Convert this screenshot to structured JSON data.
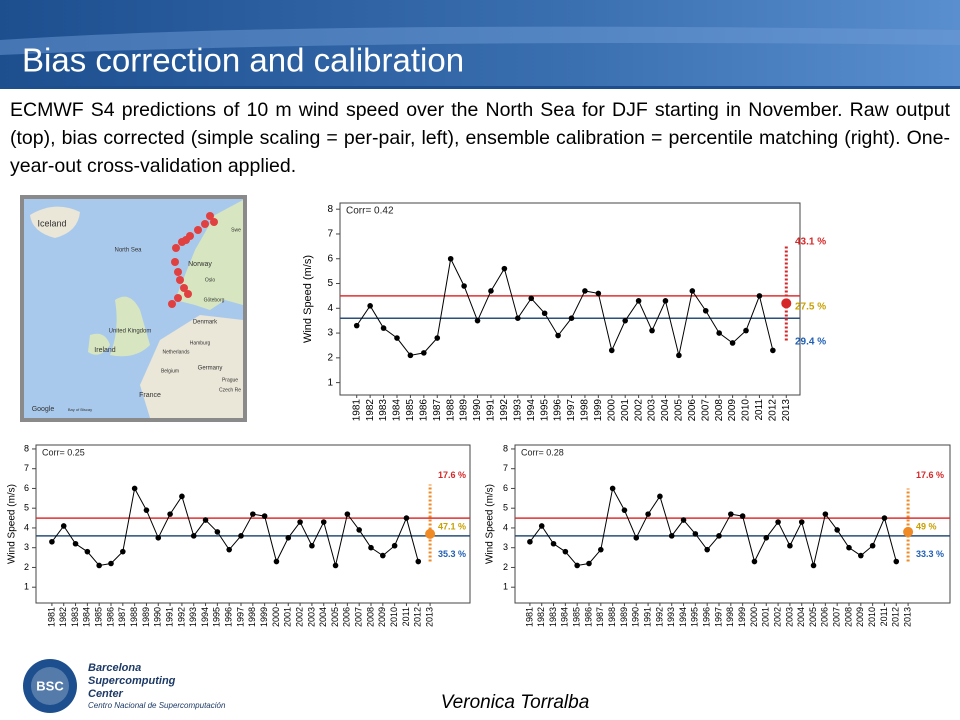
{
  "header": {
    "title": "Bias correction and calibration"
  },
  "description": "ECMWF S4 predictions of 10 m wind speed over the North Sea for DJF starting in November. Raw output (top), bias corrected (simple scaling = per-pair, left), ensemble calibration = percentile matching (right). One-year-out cross-validation applied.",
  "map": {
    "labels": [
      "Iceland",
      "North Sea",
      "Norway",
      "Oslo",
      "Swe",
      "Göteborg",
      "Denmark",
      "United Kingdom",
      "Ireland",
      "Netherlands",
      "Hamburg",
      "Belgium",
      "Germany",
      "France",
      "Prague",
      "Czech Re",
      "Google",
      "Bay of Biscay"
    ]
  },
  "chart_data": [
    {
      "type": "line",
      "corr_label": "Corr= 0.42",
      "y_label": "Wind Speed (m/s)",
      "categories": [
        "1981",
        "1982",
        "1983",
        "1984",
        "1985",
        "1986",
        "1987",
        "1988",
        "1989",
        "1990",
        "1991",
        "1992",
        "1993",
        "1994",
        "1995",
        "1996",
        "1997",
        "1998",
        "1999",
        "2000",
        "2001",
        "2002",
        "2003",
        "2004",
        "2005",
        "2006",
        "2007",
        "2008",
        "2009",
        "2010",
        "2011",
        "2012",
        "2013"
      ],
      "values": [
        3.3,
        4.1,
        3.2,
        2.8,
        2.1,
        2.2,
        2.8,
        6.0,
        4.9,
        3.5,
        4.7,
        5.6,
        3.6,
        4.4,
        3.8,
        2.9,
        3.6,
        4.7,
        4.6,
        2.3,
        3.5,
        4.3,
        3.1,
        4.3,
        2.1,
        4.7,
        3.9,
        3.0,
        2.6,
        3.1,
        4.5,
        2.3,
        null
      ],
      "color": "#000000",
      "ylim": [
        0.5,
        8.25
      ],
      "yticks": [
        1,
        2,
        3,
        4,
        5,
        6,
        7,
        8
      ],
      "upper_line": 4.5,
      "upper_color": "#e03030",
      "lower_line": 3.6,
      "lower_color": "#2a4f7a",
      "forecast": {
        "value": 4.2,
        "range": [
          2.7,
          6.5
        ],
        "color": "#d62728"
      },
      "terciles": {
        "values": [
          43.1,
          27.5,
          29.4
        ],
        "value_labels": [
          "43.1 %",
          "27.5 %",
          "29.4 %"
        ],
        "colors": [
          "#d62728",
          "#c8a000",
          "#1f5fb4"
        ]
      }
    },
    {
      "type": "line",
      "corr_label": "Corr= 0.25",
      "y_label": "Wind Speed (m/s)",
      "categories": [
        "1981",
        "1982",
        "1983",
        "1984",
        "1985",
        "1986",
        "1987",
        "1988",
        "1989",
        "1990",
        "1991",
        "1992",
        "1993",
        "1994",
        "1995",
        "1996",
        "1997",
        "1998",
        "1999",
        "2000",
        "2001",
        "2002",
        "2003",
        "2004",
        "2005",
        "2006",
        "2007",
        "2008",
        "2009",
        "2010",
        "2011",
        "2012",
        "2013"
      ],
      "values": [
        3.3,
        4.1,
        3.2,
        2.8,
        2.1,
        2.2,
        2.8,
        6.0,
        4.9,
        3.5,
        4.7,
        5.6,
        3.6,
        4.4,
        3.8,
        2.9,
        3.6,
        4.7,
        4.6,
        2.3,
        3.5,
        4.3,
        3.1,
        4.3,
        2.1,
        4.7,
        3.9,
        3.0,
        2.6,
        3.1,
        4.5,
        2.3,
        null
      ],
      "color": "#000000",
      "ylim": [
        0.2,
        8.2
      ],
      "yticks": [
        1,
        2,
        3,
        4,
        5,
        6,
        7,
        8
      ],
      "upper_line": 4.5,
      "upper_color": "#e03030",
      "lower_line": 3.6,
      "lower_color": "#2a4f7a",
      "forecast": {
        "value": 3.7,
        "range": [
          2.3,
          6.2
        ],
        "color": "#f08a24"
      },
      "terciles": {
        "values": [
          17.6,
          47.1,
          35.3
        ],
        "value_labels": [
          "17.6 %",
          "47.1 %",
          "35.3 %"
        ],
        "colors": [
          "#d62728",
          "#c8a000",
          "#1f5fb4"
        ]
      }
    },
    {
      "type": "line",
      "corr_label": "Corr= 0.28",
      "y_label": "Wind Speed (m/s)",
      "categories": [
        "1981",
        "1982",
        "1983",
        "1984",
        "1985",
        "1986",
        "1987",
        "1988",
        "1989",
        "1990",
        "1991",
        "1992",
        "1993",
        "1994",
        "1995",
        "1996",
        "1997",
        "1998",
        "1999",
        "2000",
        "2001",
        "2002",
        "2003",
        "2004",
        "2005",
        "2006",
        "2007",
        "2008",
        "2009",
        "2010",
        "2011",
        "2012",
        "2013"
      ],
      "values": [
        3.3,
        4.1,
        3.2,
        2.8,
        2.1,
        2.2,
        2.9,
        6.0,
        4.9,
        3.5,
        4.7,
        5.6,
        3.6,
        4.4,
        3.7,
        2.9,
        3.6,
        4.7,
        4.6,
        2.3,
        3.5,
        4.3,
        3.1,
        4.3,
        2.1,
        4.7,
        3.9,
        3.0,
        2.6,
        3.1,
        4.5,
        2.3,
        null
      ],
      "color": "#000000",
      "ylim": [
        0.2,
        8.2
      ],
      "yticks": [
        1,
        2,
        3,
        4,
        5,
        6,
        7,
        8
      ],
      "upper_line": 4.5,
      "upper_color": "#e03030",
      "lower_line": 3.6,
      "lower_color": "#2a4f7a",
      "forecast": {
        "value": 3.8,
        "range": [
          2.3,
          6.0
        ],
        "color": "#f08a24"
      },
      "terciles": {
        "values": [
          17.6,
          49,
          33.3
        ],
        "value_labels": [
          "17.6 %",
          "49 %",
          "33.3 %"
        ],
        "colors": [
          "#d62728",
          "#c8a000",
          "#1f5fb4"
        ]
      }
    }
  ],
  "footer": {
    "logo": "BSC",
    "org": [
      "Barcelona",
      "Supercomputing",
      "Center"
    ],
    "org_sub": "Centro Nacional de Supercomputación",
    "author": "Veronica Torralba"
  }
}
